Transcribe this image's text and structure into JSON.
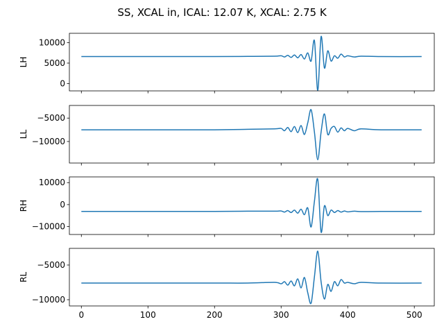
{
  "chart_data": {
    "type": "line",
    "title": "SS, XCAL in, ICAL: 12.07 K, XCAL: 2.75 K",
    "line_color": "#1f77b4",
    "shared_x": true,
    "xlim": [
      -18,
      530
    ],
    "xticks": [
      0,
      100,
      200,
      300,
      400,
      500
    ],
    "xtick_labels": [
      "0",
      "100",
      "200",
      "300",
      "400",
      "500"
    ],
    "subplots": [
      {
        "ylabel": "LH",
        "ylim": [
          -1800,
          12300
        ],
        "yticks": [
          0,
          5000,
          10000
        ],
        "ytick_labels": [
          "0",
          "5000",
          "10000"
        ],
        "x": [
          0,
          100,
          200,
          250,
          290,
          300,
          305,
          310,
          315,
          320,
          325,
          330,
          335,
          340,
          345,
          350,
          355,
          360,
          365,
          370,
          375,
          380,
          385,
          390,
          395,
          400,
          410,
          420,
          450,
          511
        ],
        "y": [
          6600,
          6600,
          6600,
          6650,
          6700,
          6800,
          6500,
          6900,
          6400,
          7000,
          6300,
          7100,
          6000,
          7500,
          5500,
          10500,
          -1700,
          11500,
          3800,
          8000,
          5500,
          6800,
          6200,
          7200,
          6500,
          6800,
          6500,
          6700,
          6600,
          6600
        ]
      },
      {
        "ylabel": "LL",
        "ylim": [
          -14600,
          -2300
        ],
        "yticks": [
          -10000,
          -5000
        ],
        "ytick_labels": [
          "−10000",
          "−5000"
        ],
        "x": [
          0,
          100,
          200,
          250,
          290,
          300,
          305,
          310,
          315,
          320,
          325,
          330,
          335,
          340,
          345,
          350,
          355,
          360,
          365,
          370,
          375,
          380,
          385,
          390,
          395,
          400,
          410,
          420,
          450,
          511
        ],
        "y": [
          -7500,
          -7500,
          -7500,
          -7400,
          -7300,
          -7200,
          -7700,
          -7000,
          -7900,
          -6800,
          -8100,
          -6600,
          -8500,
          -6000,
          -3200,
          -8000,
          -13900,
          -8000,
          -4100,
          -8500,
          -7200,
          -6800,
          -8000,
          -7100,
          -7700,
          -7200,
          -7700,
          -7300,
          -7500,
          -7500
        ]
      },
      {
        "ylabel": "RH",
        "ylim": [
          -13600,
          12600
        ],
        "yticks": [
          -10000,
          0,
          10000
        ],
        "ytick_labels": [
          "−10000",
          "0",
          "10000"
        ],
        "x": [
          0,
          100,
          200,
          250,
          290,
          300,
          305,
          310,
          315,
          320,
          325,
          330,
          335,
          340,
          345,
          350,
          355,
          360,
          365,
          370,
          375,
          380,
          385,
          390,
          395,
          400,
          410,
          420,
          450,
          511
        ],
        "y": [
          -3100,
          -3100,
          -3100,
          -3000,
          -3000,
          -2900,
          -3400,
          -2700,
          -3600,
          -2500,
          -3900,
          -2100,
          -4600,
          -1500,
          -10200,
          1500,
          11500,
          -12500,
          -600,
          -5000,
          -2500,
          -3600,
          -2700,
          -3400,
          -2900,
          -3300,
          -3000,
          -3200,
          -3100,
          -3100
        ]
      },
      {
        "ylabel": "RL",
        "ylim": [
          -10900,
          -2600
        ],
        "yticks": [
          -10000,
          -5000
        ],
        "ytick_labels": [
          "−10000",
          "−5000"
        ],
        "x": [
          0,
          100,
          200,
          250,
          290,
          300,
          305,
          310,
          315,
          320,
          325,
          330,
          335,
          340,
          345,
          350,
          355,
          360,
          365,
          370,
          375,
          380,
          385,
          390,
          395,
          400,
          410,
          420,
          450,
          511
        ],
        "y": [
          -7600,
          -7600,
          -7600,
          -7600,
          -7500,
          -7700,
          -7400,
          -7900,
          -7300,
          -8000,
          -7000,
          -8300,
          -6800,
          -9000,
          -10500,
          -6700,
          -3000,
          -7400,
          -9900,
          -7800,
          -8800,
          -7400,
          -8000,
          -7100,
          -7600,
          -7500,
          -7700,
          -7500,
          -7600,
          -7600
        ]
      }
    ]
  }
}
